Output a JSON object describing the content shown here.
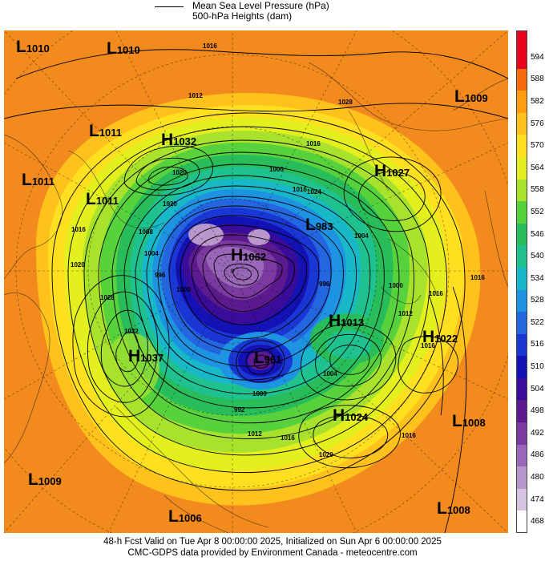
{
  "header": {
    "legend_line1": "Mean Sea Level Pressure (hPa)",
    "legend_line2": "500-hPa Heights (dam)"
  },
  "footer": {
    "line1": "48-h Fcst Valid on Tue Apr  8 00:00:00 2025, Initialized on Sun Apr  6 00:00:00 2025",
    "line2": "CMC-GDPS data provided by Environment Canada - meteocentre.com"
  },
  "colorbar": {
    "ticks": [
      "594",
      "588",
      "582",
      "576",
      "570",
      "564",
      "558",
      "552",
      "546",
      "540",
      "534",
      "528",
      "522",
      "516",
      "510",
      "504",
      "498",
      "492",
      "486",
      "480",
      "474",
      "468"
    ],
    "colors": [
      "#e8001c",
      "#f86a0c",
      "#ff9d10",
      "#ffc21c",
      "#ffe020",
      "#e4ef1e",
      "#a8e22c",
      "#58d23c",
      "#28bd5a",
      "#1fc28f",
      "#18b8c9",
      "#1d93e2",
      "#2466e0",
      "#1a37d6",
      "#1412b4",
      "#3a0c9a",
      "#5b1a8e",
      "#7a3a9f",
      "#9a68b8",
      "#b996cb",
      "#d7c3e0",
      "#ffffff"
    ]
  },
  "map": {
    "pressure_centers": [
      {
        "type": "L",
        "value": "1010"
      },
      {
        "type": "L",
        "value": "1010"
      },
      {
        "type": "L",
        "value": "1009"
      },
      {
        "type": "L",
        "value": "1011"
      },
      {
        "type": "H",
        "value": "1032"
      },
      {
        "type": "L",
        "value": "1011"
      },
      {
        "type": "L",
        "value": "1011"
      },
      {
        "type": "H",
        "value": "1027"
      },
      {
        "type": "L",
        "value": "983"
      },
      {
        "type": "H",
        "value": "1062"
      },
      {
        "type": "H",
        "value": "1013"
      },
      {
        "type": "H",
        "value": "1022"
      },
      {
        "type": "H",
        "value": "1037"
      },
      {
        "type": "L",
        "value": "961"
      },
      {
        "type": "H",
        "value": "1024"
      },
      {
        "type": "L",
        "value": "1008"
      },
      {
        "type": "L",
        "value": "1009"
      },
      {
        "type": "L",
        "value": "1006"
      },
      {
        "type": "L",
        "value": "1008"
      }
    ],
    "isobar_labels": [
      "1016",
      "1028",
      "1012",
      "1016",
      "1020",
      "1020",
      "1016",
      "1000",
      "1004",
      "996",
      "1000",
      "1012",
      "1016",
      "1016",
      "1020",
      "1024",
      "1016",
      "1016",
      "1032",
      "1028",
      "1004",
      "1000",
      "992",
      "1012",
      "1016",
      "1020",
      "1016",
      "1008",
      "1004",
      "996",
      "1000"
    ]
  }
}
